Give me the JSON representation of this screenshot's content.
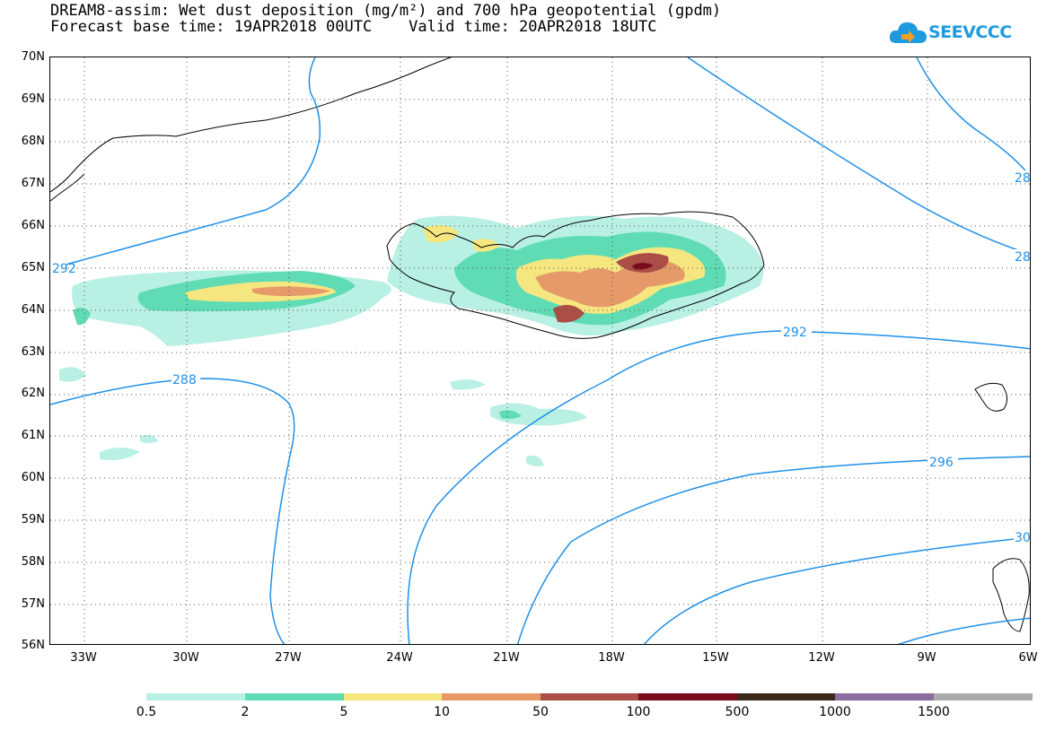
{
  "title": {
    "line1": "DREAM8-assim: Wet dust deposition (mg/m²) and 700 hPa geopotential (gpdm)",
    "line2": "Forecast base time: 19APR2018 00UTC    Valid time: 20APR2018 18UTC"
  },
  "logo": {
    "text": "SEEVCCC",
    "icon": "cloud-arrow-icon",
    "color": "#1e9be0"
  },
  "axes": {
    "lat_labels": [
      "70N",
      "69N",
      "68N",
      "67N",
      "66N",
      "65N",
      "64N",
      "63N",
      "62N",
      "61N",
      "60N",
      "59N",
      "58N",
      "57N",
      "56N"
    ],
    "lon_labels": [
      "33W",
      "30W",
      "27W",
      "24W",
      "21W",
      "18W",
      "15W",
      "12W",
      "9W",
      "6W"
    ],
    "lat_range": [
      56,
      70
    ],
    "lon_range": [
      -34.5,
      -6
    ],
    "grid": "dotted"
  },
  "contours": {
    "color": "#1e90e8",
    "labels": [
      "292",
      "288",
      "292",
      "296",
      "28",
      "28",
      "30"
    ]
  },
  "legend": {
    "colors": [
      "#b9f0e4",
      "#5fdcb4",
      "#f5e680",
      "#e69a6a",
      "#aa4e46",
      "#7a0a1e",
      "#3a2a1e",
      "#8a6ea0",
      "#aaaaaa"
    ],
    "labels": [
      "0.5",
      "2",
      "5",
      "10",
      "50",
      "100",
      "500",
      "1000",
      "1500"
    ]
  }
}
